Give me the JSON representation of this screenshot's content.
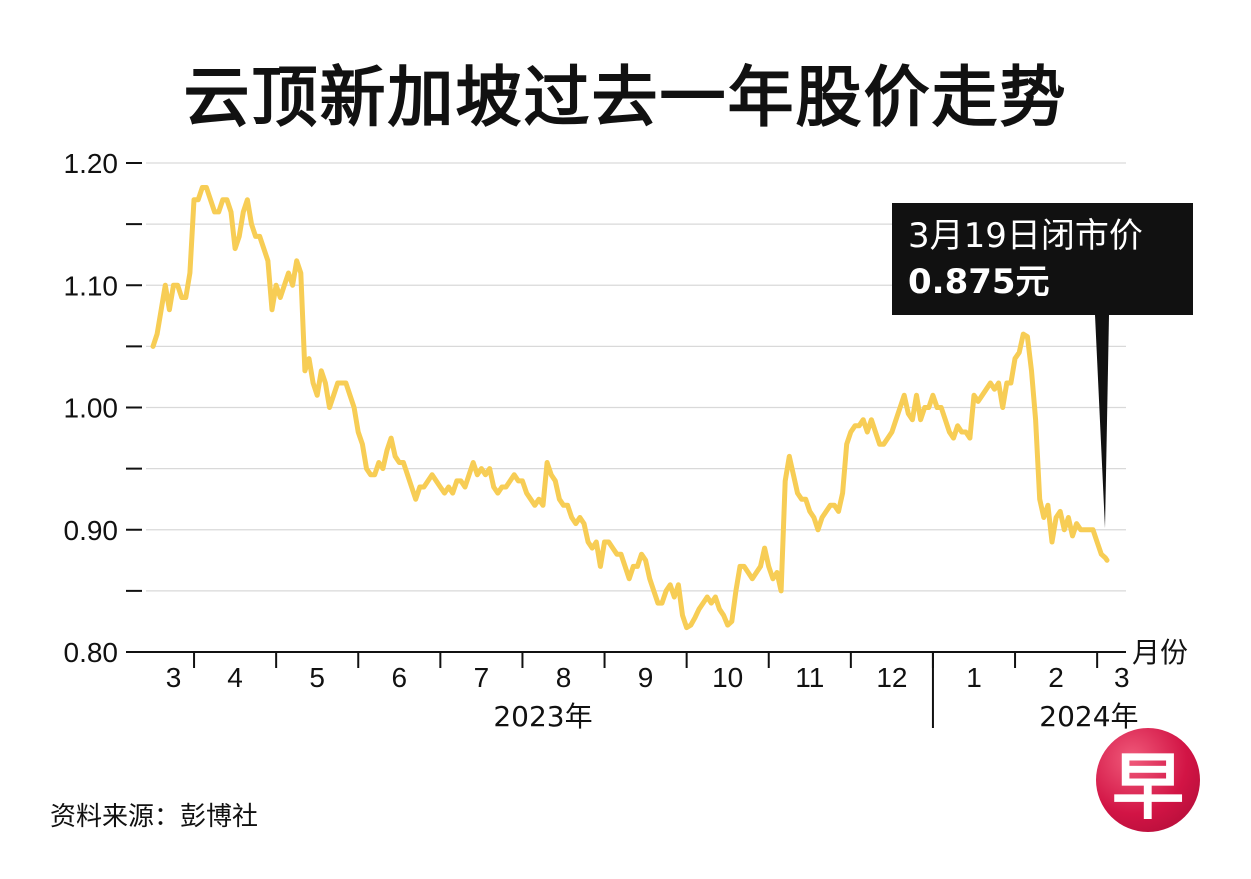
{
  "title": "云顶新加坡过去一年股价走势",
  "source": "资料来源：彭博社",
  "logo_text": "早",
  "callout": {
    "line1": "3月19日闭市价",
    "line2": "0.875元"
  },
  "colors": {
    "line": "#f7cd55",
    "grid": "#d9d9d9",
    "axis": "#111111",
    "callout_bg": "#111111"
  },
  "chart_data": {
    "type": "line",
    "title": "云顶新加坡过去一年股价走势",
    "xlabel": "月份",
    "ylabel": "",
    "ylim": [
      0.8,
      1.2
    ],
    "yticks": [
      {
        "value": 1.2,
        "label": "1.20"
      },
      {
        "value": 1.15,
        "label": ""
      },
      {
        "value": 1.1,
        "label": "1.10"
      },
      {
        "value": 1.05,
        "label": ""
      },
      {
        "value": 1.0,
        "label": "1.00"
      },
      {
        "value": 0.95,
        "label": ""
      },
      {
        "value": 0.9,
        "label": "0.90"
      },
      {
        "value": 0.85,
        "label": ""
      },
      {
        "value": 0.8,
        "label": "0.80"
      }
    ],
    "xlim": [
      0,
      12.6
    ],
    "months": [
      {
        "label": "3",
        "center": 0.25
      },
      {
        "label": "4",
        "center": 1.0
      },
      {
        "label": "5",
        "center": 2.0
      },
      {
        "label": "6",
        "center": 3.0
      },
      {
        "label": "7",
        "center": 4.0
      },
      {
        "label": "8",
        "center": 5.0
      },
      {
        "label": "9",
        "center": 6.0
      },
      {
        "label": "10",
        "center": 7.0
      },
      {
        "label": "11",
        "center": 8.0
      },
      {
        "label": "12",
        "center": 9.0
      },
      {
        "label": "1",
        "center": 10.0
      },
      {
        "label": "2",
        "center": 11.0
      },
      {
        "label": "3",
        "center": 11.8
      }
    ],
    "month_boundaries": [
      0.5,
      1.5,
      2.5,
      3.5,
      4.5,
      5.5,
      6.5,
      7.5,
      8.5,
      9.5,
      10.5,
      11.5
    ],
    "years": [
      {
        "label": "2023年",
        "center": 4.75
      },
      {
        "label": "2024年",
        "center": 11.4
      }
    ],
    "year_divider": 9.5,
    "series": [
      {
        "name": "股价",
        "points": [
          [
            0.0,
            1.05
          ],
          [
            0.05,
            1.06
          ],
          [
            0.1,
            1.08
          ],
          [
            0.15,
            1.1
          ],
          [
            0.2,
            1.08
          ],
          [
            0.25,
            1.1
          ],
          [
            0.3,
            1.1
          ],
          [
            0.35,
            1.09
          ],
          [
            0.4,
            1.09
          ],
          [
            0.45,
            1.11
          ],
          [
            0.5,
            1.17
          ],
          [
            0.55,
            1.17
          ],
          [
            0.6,
            1.18
          ],
          [
            0.65,
            1.18
          ],
          [
            0.7,
            1.17
          ],
          [
            0.75,
            1.16
          ],
          [
            0.8,
            1.16
          ],
          [
            0.85,
            1.17
          ],
          [
            0.9,
            1.17
          ],
          [
            0.95,
            1.16
          ],
          [
            1.0,
            1.13
          ],
          [
            1.05,
            1.14
          ],
          [
            1.1,
            1.16
          ],
          [
            1.15,
            1.17
          ],
          [
            1.2,
            1.15
          ],
          [
            1.25,
            1.14
          ],
          [
            1.3,
            1.14
          ],
          [
            1.35,
            1.13
          ],
          [
            1.4,
            1.12
          ],
          [
            1.45,
            1.08
          ],
          [
            1.5,
            1.1
          ],
          [
            1.55,
            1.09
          ],
          [
            1.6,
            1.1
          ],
          [
            1.65,
            1.11
          ],
          [
            1.7,
            1.1
          ],
          [
            1.75,
            1.12
          ],
          [
            1.8,
            1.11
          ],
          [
            1.85,
            1.03
          ],
          [
            1.9,
            1.04
          ],
          [
            1.95,
            1.02
          ],
          [
            2.0,
            1.01
          ],
          [
            2.05,
            1.03
          ],
          [
            2.1,
            1.02
          ],
          [
            2.15,
            1.0
          ],
          [
            2.2,
            1.01
          ],
          [
            2.25,
            1.02
          ],
          [
            2.3,
            1.02
          ],
          [
            2.35,
            1.02
          ],
          [
            2.4,
            1.01
          ],
          [
            2.45,
            1.0
          ],
          [
            2.5,
            0.98
          ],
          [
            2.55,
            0.97
          ],
          [
            2.6,
            0.95
          ],
          [
            2.65,
            0.945
          ],
          [
            2.7,
            0.945
          ],
          [
            2.75,
            0.955
          ],
          [
            2.8,
            0.95
          ],
          [
            2.85,
            0.965
          ],
          [
            2.9,
            0.975
          ],
          [
            2.95,
            0.96
          ],
          [
            3.0,
            0.955
          ],
          [
            3.05,
            0.955
          ],
          [
            3.1,
            0.945
          ],
          [
            3.15,
            0.935
          ],
          [
            3.2,
            0.925
          ],
          [
            3.25,
            0.935
          ],
          [
            3.3,
            0.935
          ],
          [
            3.35,
            0.94
          ],
          [
            3.4,
            0.945
          ],
          [
            3.45,
            0.94
          ],
          [
            3.5,
            0.935
          ],
          [
            3.55,
            0.93
          ],
          [
            3.6,
            0.935
          ],
          [
            3.65,
            0.93
          ],
          [
            3.7,
            0.94
          ],
          [
            3.75,
            0.94
          ],
          [
            3.8,
            0.935
          ],
          [
            3.85,
            0.945
          ],
          [
            3.9,
            0.955
          ],
          [
            3.95,
            0.945
          ],
          [
            4.0,
            0.95
          ],
          [
            4.05,
            0.945
          ],
          [
            4.1,
            0.95
          ],
          [
            4.15,
            0.935
          ],
          [
            4.2,
            0.93
          ],
          [
            4.25,
            0.935
          ],
          [
            4.3,
            0.935
          ],
          [
            4.35,
            0.94
          ],
          [
            4.4,
            0.945
          ],
          [
            4.45,
            0.94
          ],
          [
            4.5,
            0.94
          ],
          [
            4.55,
            0.93
          ],
          [
            4.6,
            0.925
          ],
          [
            4.65,
            0.92
          ],
          [
            4.7,
            0.925
          ],
          [
            4.75,
            0.92
          ],
          [
            4.8,
            0.955
          ],
          [
            4.85,
            0.945
          ],
          [
            4.9,
            0.94
          ],
          [
            4.95,
            0.925
          ],
          [
            5.0,
            0.92
          ],
          [
            5.05,
            0.92
          ],
          [
            5.1,
            0.91
          ],
          [
            5.15,
            0.905
          ],
          [
            5.2,
            0.91
          ],
          [
            5.25,
            0.905
          ],
          [
            5.3,
            0.89
          ],
          [
            5.35,
            0.885
          ],
          [
            5.4,
            0.89
          ],
          [
            5.45,
            0.87
          ],
          [
            5.5,
            0.89
          ],
          [
            5.55,
            0.89
          ],
          [
            5.6,
            0.885
          ],
          [
            5.65,
            0.88
          ],
          [
            5.7,
            0.88
          ],
          [
            5.75,
            0.87
          ],
          [
            5.8,
            0.86
          ],
          [
            5.85,
            0.87
          ],
          [
            5.9,
            0.87
          ],
          [
            5.95,
            0.88
          ],
          [
            6.0,
            0.875
          ],
          [
            6.05,
            0.86
          ],
          [
            6.1,
            0.85
          ],
          [
            6.15,
            0.84
          ],
          [
            6.2,
            0.84
          ],
          [
            6.25,
            0.85
          ],
          [
            6.3,
            0.855
          ],
          [
            6.35,
            0.845
          ],
          [
            6.4,
            0.855
          ],
          [
            6.45,
            0.83
          ],
          [
            6.5,
            0.82
          ],
          [
            6.55,
            0.822
          ],
          [
            6.6,
            0.828
          ],
          [
            6.65,
            0.835
          ],
          [
            6.7,
            0.84
          ],
          [
            6.75,
            0.845
          ],
          [
            6.8,
            0.84
          ],
          [
            6.85,
            0.845
          ],
          [
            6.9,
            0.835
          ],
          [
            6.95,
            0.83
          ],
          [
            7.0,
            0.822
          ],
          [
            7.05,
            0.825
          ],
          [
            7.1,
            0.85
          ],
          [
            7.15,
            0.87
          ],
          [
            7.2,
            0.87
          ],
          [
            7.25,
            0.865
          ],
          [
            7.3,
            0.86
          ],
          [
            7.35,
            0.865
          ],
          [
            7.4,
            0.87
          ],
          [
            7.45,
            0.885
          ],
          [
            7.5,
            0.87
          ],
          [
            7.55,
            0.86
          ],
          [
            7.6,
            0.865
          ],
          [
            7.65,
            0.85
          ],
          [
            7.7,
            0.94
          ],
          [
            7.75,
            0.96
          ],
          [
            7.8,
            0.945
          ],
          [
            7.85,
            0.93
          ],
          [
            7.9,
            0.925
          ],
          [
            7.95,
            0.925
          ],
          [
            8.0,
            0.915
          ],
          [
            8.05,
            0.91
          ],
          [
            8.1,
            0.9
          ],
          [
            8.15,
            0.91
          ],
          [
            8.2,
            0.915
          ],
          [
            8.25,
            0.92
          ],
          [
            8.3,
            0.92
          ],
          [
            8.35,
            0.915
          ],
          [
            8.4,
            0.93
          ],
          [
            8.45,
            0.97
          ],
          [
            8.5,
            0.98
          ],
          [
            8.55,
            0.985
          ],
          [
            8.6,
            0.985
          ],
          [
            8.65,
            0.99
          ],
          [
            8.7,
            0.98
          ],
          [
            8.75,
            0.99
          ],
          [
            8.8,
            0.98
          ],
          [
            8.85,
            0.97
          ],
          [
            8.9,
            0.97
          ],
          [
            8.95,
            0.975
          ],
          [
            9.0,
            0.98
          ],
          [
            9.05,
            0.99
          ],
          [
            9.1,
            1.0
          ],
          [
            9.15,
            1.01
          ],
          [
            9.2,
            0.995
          ],
          [
            9.25,
            0.99
          ],
          [
            9.3,
            1.01
          ],
          [
            9.35,
            0.99
          ],
          [
            9.4,
            1.0
          ],
          [
            9.45,
            1.0
          ],
          [
            9.5,
            1.01
          ],
          [
            9.55,
            1.0
          ],
          [
            9.6,
            1.0
          ],
          [
            9.65,
            0.99
          ],
          [
            9.7,
            0.98
          ],
          [
            9.75,
            0.975
          ],
          [
            9.8,
            0.985
          ],
          [
            9.85,
            0.98
          ],
          [
            9.9,
            0.98
          ],
          [
            9.95,
            0.975
          ],
          [
            10.0,
            1.01
          ],
          [
            10.05,
            1.005
          ],
          [
            10.1,
            1.01
          ],
          [
            10.15,
            1.015
          ],
          [
            10.2,
            1.02
          ],
          [
            10.25,
            1.015
          ],
          [
            10.3,
            1.02
          ],
          [
            10.35,
            1.0
          ],
          [
            10.4,
            1.02
          ],
          [
            10.45,
            1.02
          ],
          [
            10.5,
            1.04
          ],
          [
            10.55,
            1.045
          ],
          [
            10.6,
            1.06
          ],
          [
            10.65,
            1.058
          ],
          [
            10.7,
            1.03
          ],
          [
            10.75,
            0.99
          ],
          [
            10.8,
            0.925
          ],
          [
            10.85,
            0.91
          ],
          [
            10.9,
            0.92
          ],
          [
            10.95,
            0.89
          ],
          [
            11.0,
            0.91
          ],
          [
            11.05,
            0.915
          ],
          [
            11.1,
            0.9
          ],
          [
            11.15,
            0.91
          ],
          [
            11.2,
            0.895
          ],
          [
            11.25,
            0.905
          ],
          [
            11.3,
            0.9
          ],
          [
            11.35,
            0.9
          ],
          [
            11.4,
            0.9
          ],
          [
            11.45,
            0.9
          ],
          [
            11.5,
            0.89
          ],
          [
            11.55,
            0.88
          ],
          [
            11.6,
            0.877
          ],
          [
            11.62,
            0.875
          ]
        ]
      }
    ],
    "annotations": [
      {
        "text": "3月19日闭市价 0.875元",
        "x": 11.62,
        "y": 0.875
      }
    ]
  }
}
